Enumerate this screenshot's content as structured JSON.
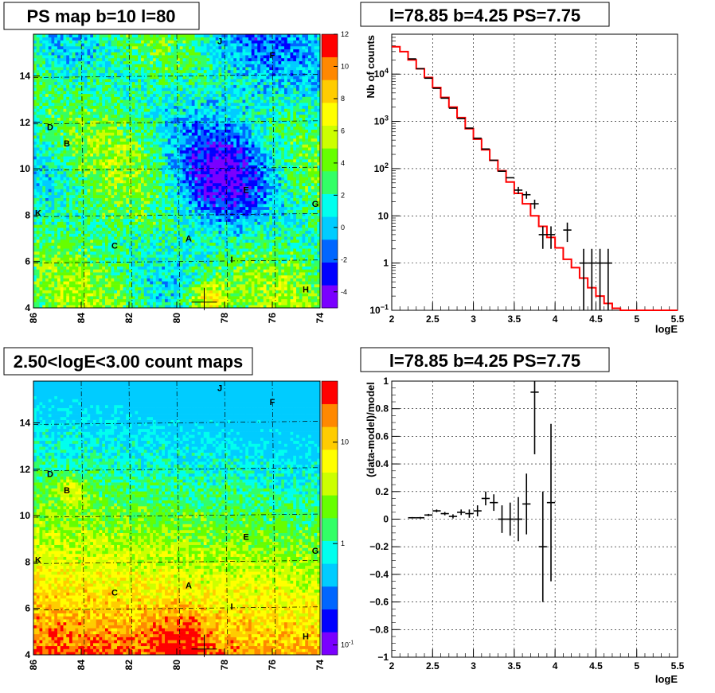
{
  "chart_data": [
    {
      "type": "heatmap",
      "title": "PS map b=10 l=80",
      "xlim": [
        86,
        74
      ],
      "ylim": [
        4,
        15.8
      ],
      "x_ticks": [
        "86",
        "84",
        "82",
        "80",
        "78",
        "76",
        "74"
      ],
      "y_ticks": [
        "4",
        "6",
        "8",
        "10",
        "12",
        "14"
      ],
      "colorbar_ticks": [
        "12",
        "10",
        "8",
        "6",
        "4",
        "2",
        "0",
        "-2",
        "-4"
      ],
      "colorbar_range": [
        -5,
        12
      ],
      "colors": [
        "#7a00ff",
        "#0000ff",
        "#0066ff",
        "#00ccff",
        "#00ffee",
        "#33ff66",
        "#66ff00",
        "#ccff00",
        "#ffff00",
        "#ffcc00",
        "#ff8800",
        "#ff0000"
      ],
      "point_sources": [
        {
          "label": "J",
          "l": 78.2,
          "b": 15.5
        },
        {
          "label": "F",
          "l": 76.0,
          "b": 14.9
        },
        {
          "label": "D",
          "l": 85.3,
          "b": 11.8
        },
        {
          "label": "B",
          "l": 84.6,
          "b": 11.1
        },
        {
          "label": "E",
          "l": 77.1,
          "b": 9.1
        },
        {
          "label": "G",
          "l": 74.2,
          "b": 8.5
        },
        {
          "label": "K",
          "l": 85.8,
          "b": 8.1
        },
        {
          "label": "C",
          "l": 82.6,
          "b": 6.7
        },
        {
          "label": "A",
          "l": 79.5,
          "b": 7.0
        },
        {
          "label": "I",
          "l": 77.7,
          "b": 6.1
        },
        {
          "label": "H",
          "l": 74.6,
          "b": 4.8
        }
      ],
      "marker": {
        "l": 78.85,
        "b": 4.25
      }
    },
    {
      "type": "line",
      "title": "l=78.85 b=4.25 PS=7.75",
      "xlabel": "logE",
      "ylabel": "Nb of counts",
      "xlim": [
        2,
        5.5
      ],
      "ylim": [
        0.1,
        70000
      ],
      "yscale": "log",
      "x_ticks": [
        "2",
        "2.5",
        "3",
        "3.5",
        "4",
        "4.5",
        "5",
        "5.5"
      ],
      "y_ticks": [
        {
          "v": 0.1,
          "m": "10",
          "e": "−1"
        },
        {
          "v": 1,
          "m": "1",
          "e": ""
        },
        {
          "v": 10,
          "m": "10",
          "e": ""
        },
        {
          "v": 100,
          "m": "10",
          "e": "2"
        },
        {
          "v": 1000,
          "m": "10",
          "e": "3"
        },
        {
          "v": 10000,
          "m": "10",
          "e": "4"
        }
      ],
      "model_color": "#ff0000",
      "model": {
        "edges": [
          2.0,
          2.1,
          2.2,
          2.3,
          2.4,
          2.5,
          2.6,
          2.7,
          2.8,
          2.9,
          3.0,
          3.1,
          3.2,
          3.3,
          3.4,
          3.5,
          3.6,
          3.7,
          3.8,
          3.9,
          4.0,
          4.1,
          4.2,
          4.3,
          4.4,
          4.5,
          4.6,
          4.7,
          4.8,
          4.9,
          5.0,
          5.1,
          5.2,
          5.3,
          5.4,
          5.5
        ],
        "values": [
          38000,
          30000,
          20000,
          13000,
          8500,
          5200,
          3200,
          2000,
          1200,
          700,
          420,
          250,
          150,
          90,
          52,
          30,
          18,
          10,
          6,
          3.5,
          2.1,
          1.2,
          0.8,
          0.48,
          0.3,
          0.2,
          0.14,
          0.11,
          0.1,
          0.1,
          0.1,
          0.1,
          0.1,
          0.1,
          0.1
        ]
      },
      "data": [
        {
          "x": 2.25,
          "y": 21000,
          "err": 0
        },
        {
          "x": 2.35,
          "y": 13000,
          "err": 0
        },
        {
          "x": 2.45,
          "y": 8200,
          "err": 0
        },
        {
          "x": 2.55,
          "y": 5000,
          "err": 0
        },
        {
          "x": 2.65,
          "y": 3100,
          "err": 0
        },
        {
          "x": 2.75,
          "y": 1900,
          "err": 0
        },
        {
          "x": 2.85,
          "y": 1150,
          "err": 0
        },
        {
          "x": 2.95,
          "y": 720,
          "err": 0
        },
        {
          "x": 3.05,
          "y": 440,
          "err": 0
        },
        {
          "x": 3.15,
          "y": 260,
          "err": 0
        },
        {
          "x": 3.25,
          "y": 150,
          "err": 0
        },
        {
          "x": 3.35,
          "y": 88,
          "err": 0
        },
        {
          "x": 3.45,
          "y": 64,
          "err": 0
        },
        {
          "x": 3.55,
          "y": 35,
          "err": 6
        },
        {
          "x": 3.65,
          "y": 28,
          "err": 5
        },
        {
          "x": 3.75,
          "y": 18,
          "err": 4
        },
        {
          "x": 3.85,
          "y": 4,
          "err": 2
        },
        {
          "x": 3.95,
          "y": 4,
          "err": 2
        },
        {
          "x": 4.15,
          "y": 5,
          "err": 2.2
        },
        {
          "x": 4.35,
          "y": 1,
          "err": 1
        },
        {
          "x": 4.45,
          "y": 1,
          "err": 1
        },
        {
          "x": 4.55,
          "y": 1,
          "err": 1
        },
        {
          "x": 4.65,
          "y": 1,
          "err": 1
        }
      ]
    },
    {
      "type": "heatmap",
      "title": "2.50<logE<3.00 count maps",
      "xlim": [
        86,
        74
      ],
      "ylim": [
        4,
        15.8
      ],
      "x_ticks": [
        "86",
        "84",
        "82",
        "80",
        "78",
        "76",
        "74"
      ],
      "y_ticks": [
        "4",
        "6",
        "8",
        "10",
        "12",
        "14"
      ],
      "colorbar_ticks": [
        {
          "v": 10,
          "m": "10",
          "e": ""
        },
        {
          "v": 1,
          "m": "1",
          "e": ""
        },
        {
          "v": 0.1,
          "m": "10",
          "e": "-1"
        }
      ],
      "colorbar_range": [
        0.08,
        40
      ],
      "colorbar_scale": "log",
      "colors": [
        "#7a00ff",
        "#0000ff",
        "#0066ff",
        "#00ccff",
        "#00ffee",
        "#33ff66",
        "#66ff00",
        "#ccff00",
        "#ffff00",
        "#ffcc00",
        "#ff8800",
        "#ff0000"
      ],
      "point_sources": [
        {
          "label": "J",
          "l": 78.2,
          "b": 15.5
        },
        {
          "label": "F",
          "l": 76.0,
          "b": 14.9
        },
        {
          "label": "D",
          "l": 85.3,
          "b": 11.8
        },
        {
          "label": "B",
          "l": 84.6,
          "b": 11.1
        },
        {
          "label": "E",
          "l": 77.1,
          "b": 9.1
        },
        {
          "label": "G",
          "l": 74.2,
          "b": 8.5
        },
        {
          "label": "K",
          "l": 85.8,
          "b": 8.1
        },
        {
          "label": "C",
          "l": 82.6,
          "b": 6.7
        },
        {
          "label": "A",
          "l": 79.5,
          "b": 7.0
        },
        {
          "label": "I",
          "l": 77.7,
          "b": 6.1
        },
        {
          "label": "H",
          "l": 74.6,
          "b": 4.8
        }
      ],
      "marker": {
        "l": 78.85,
        "b": 4.25
      }
    },
    {
      "type": "scatter",
      "title": "l=78.85 b=4.25 PS=7.75",
      "xlabel": "logE",
      "ylabel": "(data-model)/model",
      "xlim": [
        2,
        5.5
      ],
      "ylim": [
        -1,
        1
      ],
      "x_ticks": [
        "2",
        "2.5",
        "3",
        "3.5",
        "4",
        "4.5",
        "5",
        "5.5"
      ],
      "y_ticks": [
        "1",
        "0.8",
        "0.6",
        "0.4",
        "0.2",
        "0",
        "−0.2",
        "−0.4",
        "−0.6",
        "−0.8",
        "−1"
      ],
      "data": [
        {
          "x": 2.25,
          "y": 0.01,
          "err": 0.005
        },
        {
          "x": 2.35,
          "y": 0.01,
          "err": 0.006
        },
        {
          "x": 2.45,
          "y": 0.03,
          "err": 0.008
        },
        {
          "x": 2.55,
          "y": 0.06,
          "err": 0.01
        },
        {
          "x": 2.65,
          "y": 0.04,
          "err": 0.012
        },
        {
          "x": 2.75,
          "y": 0.02,
          "err": 0.015
        },
        {
          "x": 2.85,
          "y": 0.05,
          "err": 0.02
        },
        {
          "x": 2.95,
          "y": 0.04,
          "err": 0.03
        },
        {
          "x": 3.05,
          "y": 0.06,
          "err": 0.04
        },
        {
          "x": 3.15,
          "y": 0.15,
          "err": 0.05
        },
        {
          "x": 3.25,
          "y": 0.12,
          "err": 0.06
        },
        {
          "x": 3.35,
          "y": 0.0,
          "err": 0.1
        },
        {
          "x": 3.45,
          "y": 0.0,
          "err": 0.12
        },
        {
          "x": 3.55,
          "y": 0.0,
          "err": 0.16
        },
        {
          "x": 3.65,
          "y": 0.11,
          "err": 0.22
        },
        {
          "x": 3.75,
          "y": 0.92,
          "err": 0.45
        },
        {
          "x": 3.85,
          "y": -0.2,
          "err": 0.4
        },
        {
          "x": 3.95,
          "y": 0.12,
          "err": 0.57
        }
      ]
    }
  ]
}
